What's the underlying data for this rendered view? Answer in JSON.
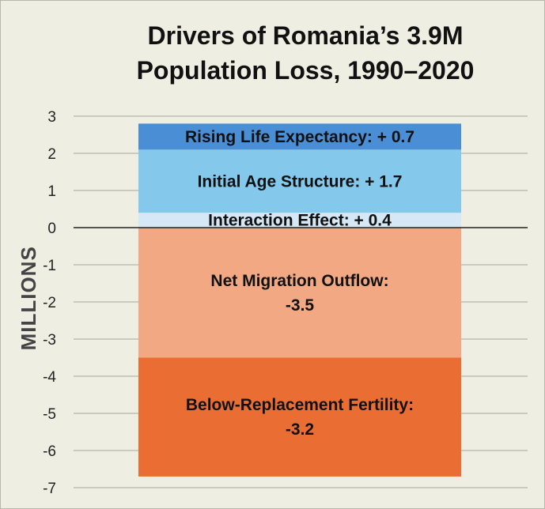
{
  "chart_data": {
    "type": "bar",
    "title": "Drivers of Romania’s 3.9M Population Loss, 1990–2020",
    "title_lines": [
      "Drivers of Romania’s 3.9M",
      "Population Loss, 1990–2020"
    ],
    "ylabel": "MILLIONS",
    "xlabel": "",
    "ylim": [
      -7,
      3
    ],
    "yticks": [
      3,
      2,
      1,
      0,
      -1,
      -2,
      -3,
      -4,
      -5,
      -6,
      -7
    ],
    "grid": true,
    "series": [
      {
        "name": "Rising Life Expectancy",
        "value": 0.7,
        "label_lines": [
          "Rising Life Expectancy: + 0.7"
        ],
        "color": "#4a8ed6"
      },
      {
        "name": "Initial Age Structure",
        "value": 1.7,
        "label_lines": [
          "Initial Age Structure: + 1.7"
        ],
        "color": "#84c8ec"
      },
      {
        "name": "Interaction Effect",
        "value": 0.4,
        "label_lines": [
          "Interaction Effect: + 0.4"
        ],
        "color": "#d6e8f6"
      },
      {
        "name": "Net Migration Outflow",
        "value": -3.5,
        "label_lines": [
          "Net Migration  Outflow:",
          "-3.5"
        ],
        "color": "#f2a883"
      },
      {
        "name": "Below-Replacement Fertility",
        "value": -3.2,
        "label_lines": [
          "Below-Replacement Fertility:",
          "-3.2"
        ],
        "color": "#ea6d33"
      }
    ],
    "colors": {
      "grid": "#b4b4a8",
      "zero_line": "#222222",
      "background": "#eeeee2"
    }
  }
}
